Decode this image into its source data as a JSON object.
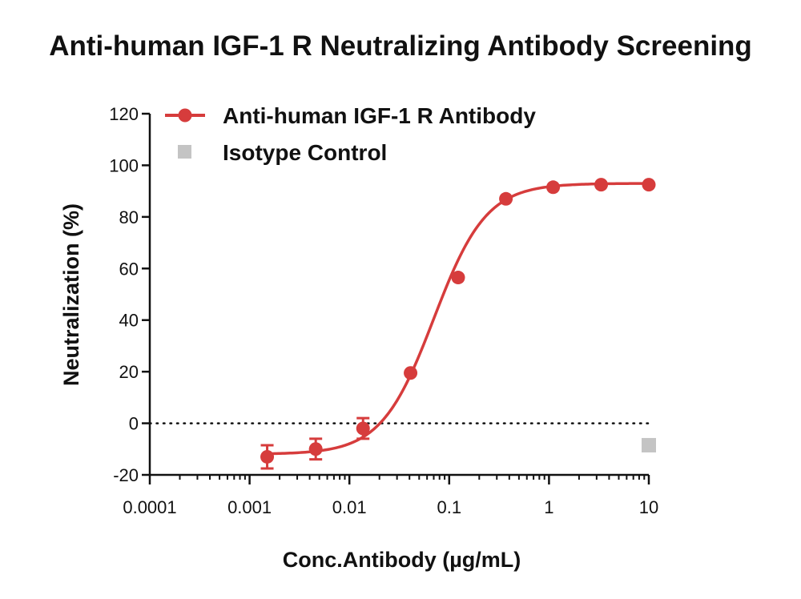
{
  "chart_data": {
    "type": "scatter",
    "title": "Anti-human IGF-1 R Neutralizing Antibody Screening",
    "xlabel": "Conc.Antibody (µg/mL)",
    "ylabel": "Neutralization (%)",
    "xscale": "log",
    "xlim": [
      0.0001,
      10
    ],
    "ylim": [
      -20,
      120
    ],
    "x_ticks": [
      0.0001,
      0.001,
      0.01,
      0.1,
      1,
      10
    ],
    "x_tick_labels": [
      "0.0001",
      "0.001",
      "0.01",
      "0.1",
      "1",
      "10"
    ],
    "y_ticks": [
      -20,
      0,
      20,
      40,
      60,
      80,
      100,
      120
    ],
    "y_tick_labels": [
      "-20",
      "0",
      "20",
      "40",
      "60",
      "80",
      "100",
      "120"
    ],
    "reference_line": {
      "y": 0,
      "style": "dotted"
    },
    "legend_position": "top-left",
    "series": [
      {
        "name": "Anti-human IGF-1 R Antibody",
        "color": "#d63c3c",
        "marker": "circle",
        "fit": "sigmoidal",
        "fit_params": {
          "bottom": -12,
          "top": 93,
          "ec50": 0.07,
          "hill": 1.65
        },
        "x": [
          0.0015,
          0.0046,
          0.0137,
          0.041,
          0.123,
          0.37,
          1.1,
          3.33,
          10
        ],
        "y": [
          -13,
          -10,
          -2,
          19.5,
          56.5,
          87,
          91.5,
          92.5,
          92.5
        ],
        "error": [
          4.5,
          4,
          4,
          0,
          0,
          0,
          0,
          0,
          0
        ]
      },
      {
        "name": "Isotype Control",
        "color": "#c4c4c4",
        "marker": "square",
        "x": [
          10
        ],
        "y": [
          -8.5
        ]
      }
    ]
  }
}
